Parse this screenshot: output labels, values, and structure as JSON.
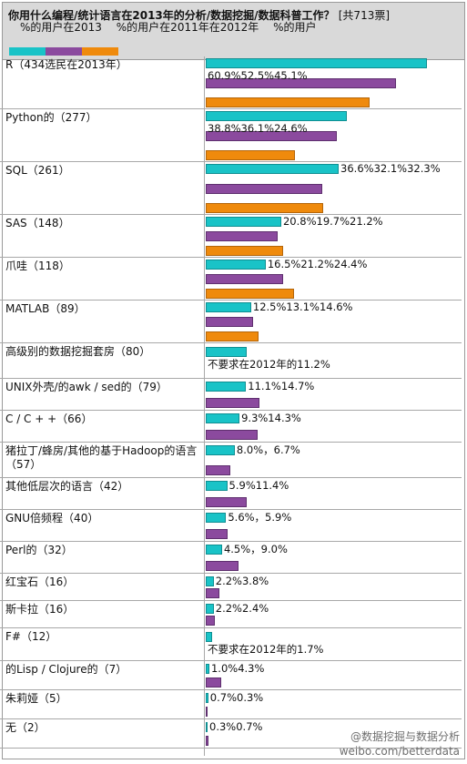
{
  "header": {
    "question": "你用什么编程/统计语言在2013年的分析/数据挖掘/数据科普工作？",
    "total_votes": "[共713票]",
    "legend_items": [
      "%的用户在2013",
      "%的用户在2011年在2012年",
      "%的用户"
    ]
  },
  "colors": {
    "series_2013": "#19c3c7",
    "series_2012": "#8b4a9e",
    "series_2011": "#ef8a0c"
  },
  "chart_data": {
    "type": "bar",
    "orientation": "horizontal",
    "xlim": [
      0,
      60.9
    ],
    "series": [
      {
        "name": "%的用户在2013",
        "color": "#19c3c7"
      },
      {
        "name": "%的用户在2011年在2012年",
        "color": "#8b4a9e"
      },
      {
        "name": "%的用户",
        "color": "#ef8a0c"
      }
    ],
    "rows": [
      {
        "label": "R（434选民在2013年）",
        "values": [
          60.9,
          52.5,
          45.1
        ],
        "value_text": "60.9%52.5%45.1%",
        "text_pos": "below1"
      },
      {
        "label": "Python的（277）",
        "values": [
          38.8,
          36.1,
          24.6
        ],
        "value_text": "38.8%36.1%24.6%",
        "text_pos": "below1"
      },
      {
        "label": "SQL（261）",
        "values": [
          36.6,
          32.1,
          32.3
        ],
        "value_text": "36.6%32.1%32.3%",
        "text_pos": "right"
      },
      {
        "label": "SAS（148）",
        "values": [
          20.8,
          19.7,
          21.2
        ],
        "value_text": "20.8%19.7%21.2%",
        "text_pos": "right"
      },
      {
        "label": "爪哇（118）",
        "values": [
          16.5,
          21.2,
          24.4
        ],
        "value_text": "16.5%21.2%24.4%",
        "text_pos": "right"
      },
      {
        "label": "MATLAB（89）",
        "values": [
          12.5,
          13.1,
          14.6
        ],
        "value_text": "12.5%13.1%14.6%",
        "text_pos": "right"
      },
      {
        "label": "高级别的数据挖掘套房（80）",
        "values": [
          11.2,
          null,
          null
        ],
        "value_text": "不要求在2012年的11.2%",
        "text_pos": "below1"
      },
      {
        "label": "UNIX外壳/的awk / sed的（79）",
        "values": [
          11.1,
          14.7,
          null
        ],
        "value_text": "11.1%14.7%",
        "text_pos": "right"
      },
      {
        "label": "C / C + +（66）",
        "values": [
          9.3,
          14.3,
          null
        ],
        "value_text": "9.3%14.3%",
        "text_pos": "right"
      },
      {
        "label": "猪拉丁/蜂房/其他的基于Hadoop的语言（57）",
        "values": [
          8.0,
          6.7,
          null
        ],
        "value_text": "8.0%，6.7%",
        "text_pos": "right"
      },
      {
        "label": "其他低层次的语言（42）",
        "values": [
          5.9,
          11.4,
          null
        ],
        "value_text": "5.9%11.4%",
        "text_pos": "right"
      },
      {
        "label": "GNU倍频程（40）",
        "values": [
          5.6,
          5.9,
          null
        ],
        "value_text": "5.6%，5.9%",
        "text_pos": "right"
      },
      {
        "label": "Perl的（32）",
        "values": [
          4.5,
          9.0,
          null
        ],
        "value_text": "4.5%，9.0%",
        "text_pos": "right"
      },
      {
        "label": "红宝石（16）",
        "values": [
          2.2,
          3.8,
          null
        ],
        "value_text": "2.2%3.8%",
        "text_pos": "right"
      },
      {
        "label": "斯卡拉（16）",
        "values": [
          2.2,
          2.4,
          null
        ],
        "value_text": "2.2%2.4%",
        "text_pos": "right"
      },
      {
        "label": "F#（12）",
        "values": [
          1.7,
          null,
          null
        ],
        "value_text": "不要求在2012年的1.7%",
        "text_pos": "below1"
      },
      {
        "label": "的Lisp / Clojure的（7）",
        "values": [
          1.0,
          4.3,
          null
        ],
        "value_text": "1.0%4.3%",
        "text_pos": "right"
      },
      {
        "label": "朱莉娅（5）",
        "values": [
          0.7,
          0.3,
          null
        ],
        "value_text": "0.7%0.3%",
        "text_pos": "right"
      },
      {
        "label": "无（2）",
        "values": [
          0.3,
          0.7,
          null
        ],
        "value_text": "0.3%0.7%",
        "text_pos": "right"
      }
    ]
  },
  "watermark": {
    "line1": "@数据挖掘与数据分析",
    "line2": "weibo.com/betterdata"
  }
}
